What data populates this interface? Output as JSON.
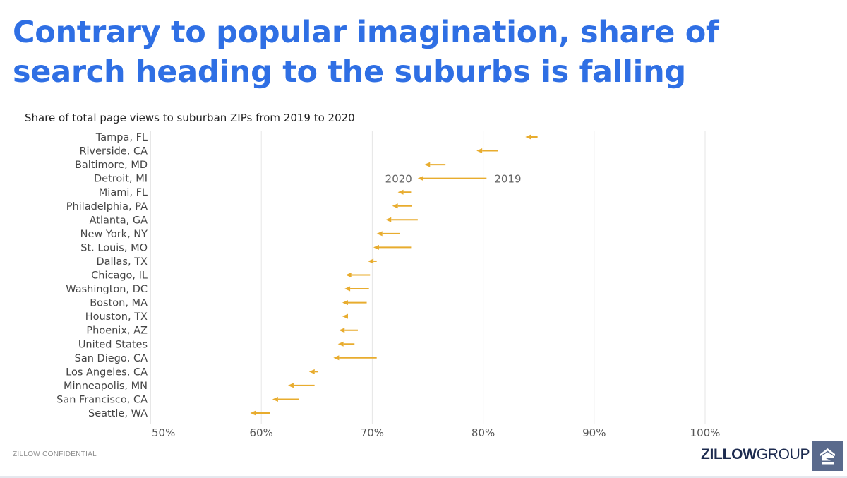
{
  "headline": {
    "line1": "Contrary to popular imagination, share of",
    "line2": "search heading to the suburbs is falling"
  },
  "footer": {
    "confidential": "ZILLOW CONFIDENTIAL",
    "brand_bold": "ZILLOW",
    "brand_light": "GROUP"
  },
  "colors": {
    "headline": "#2f6fe4",
    "arrow": "#e8ac2e",
    "grid": "#e6e6e6",
    "logo": "#5a6a8c"
  },
  "icons": {
    "logo": "zillow-house-icon"
  },
  "chart_data": {
    "type": "arrow-dumbbell",
    "title": "Share of total page views to suburban ZIPs from 2019 to 2020",
    "xlim": [
      50,
      100
    ],
    "xticks": [
      "50%",
      "60%",
      "70%",
      "80%",
      "90%",
      "100%"
    ],
    "xtick_values": [
      50,
      60,
      70,
      80,
      90,
      100
    ],
    "grid": true,
    "annotations": {
      "start": "2019",
      "end": "2020"
    },
    "annotation_row": "Detroit, MI",
    "rows": [
      {
        "label": "Tampa, FL",
        "y2019": 84.9,
        "y2020": 83.8
      },
      {
        "label": "Riverside, CA",
        "y2019": 81.3,
        "y2020": 79.4
      },
      {
        "label": "Baltimore, MD",
        "y2019": 76.6,
        "y2020": 74.7
      },
      {
        "label": "Detroit, MI",
        "y2019": 80.3,
        "y2020": 74.1
      },
      {
        "label": "Miami, FL",
        "y2019": 73.5,
        "y2020": 72.3
      },
      {
        "label": "Philadelphia, PA",
        "y2019": 73.6,
        "y2020": 71.8
      },
      {
        "label": "Atlanta, GA",
        "y2019": 74.1,
        "y2020": 71.2
      },
      {
        "label": "New York, NY",
        "y2019": 72.5,
        "y2020": 70.4
      },
      {
        "label": "St. Louis, MO",
        "y2019": 73.5,
        "y2020": 70.1
      },
      {
        "label": "Dallas, TX",
        "y2019": 70.4,
        "y2020": 69.6
      },
      {
        "label": "Chicago, IL",
        "y2019": 69.8,
        "y2020": 67.6
      },
      {
        "label": "Washington, DC",
        "y2019": 69.7,
        "y2020": 67.5
      },
      {
        "label": "Boston, MA",
        "y2019": 69.5,
        "y2020": 67.3
      },
      {
        "label": "Houston, TX",
        "y2019": 67.8,
        "y2020": 67.3
      },
      {
        "label": "Phoenix, AZ",
        "y2019": 68.7,
        "y2020": 67.0
      },
      {
        "label": "United States",
        "y2019": 68.4,
        "y2020": 66.9
      },
      {
        "label": "San Diego, CA",
        "y2019": 70.4,
        "y2020": 66.5
      },
      {
        "label": "Los Angeles, CA",
        "y2019": 65.1,
        "y2020": 64.3
      },
      {
        "label": "Minneapolis, MN",
        "y2019": 64.8,
        "y2020": 62.4
      },
      {
        "label": "San Francisco, CA",
        "y2019": 63.4,
        "y2020": 61.0
      },
      {
        "label": "Seattle, WA",
        "y2019": 60.8,
        "y2020": 59.0
      }
    ]
  }
}
